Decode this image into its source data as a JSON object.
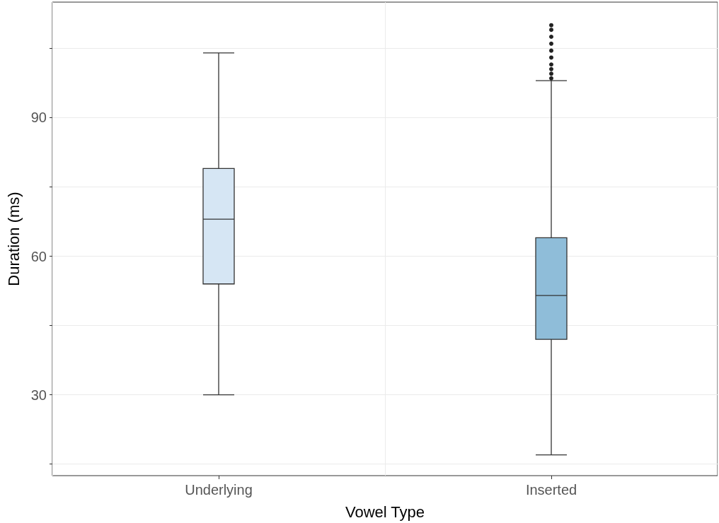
{
  "chart_data": {
    "type": "box",
    "xlabel": "Vowel Type",
    "ylabel": "Duration (ms)",
    "categories": [
      "Underlying",
      "Inserted"
    ],
    "colors": [
      "#d6e6f4",
      "#8fbdd9"
    ],
    "boxes": [
      {
        "low": 30,
        "q1": 54,
        "median": 68,
        "q3": 79,
        "high": 104
      },
      {
        "low": 17,
        "q1": 42,
        "median": 51.5,
        "q3": 64,
        "high": 98,
        "outliers": [
          98.5,
          99.5,
          100.5,
          101.5,
          103,
          104.5,
          106,
          107.5,
          109,
          110
        ]
      }
    ],
    "ylim": [
      12.5,
      115
    ],
    "yticks": [
      {
        "value": 15,
        "label": null
      },
      30,
      {
        "value": 45,
        "label": null
      },
      60,
      {
        "value": 75,
        "label": null
      },
      90,
      {
        "value": 105,
        "label": null
      }
    ],
    "grid": true
  }
}
